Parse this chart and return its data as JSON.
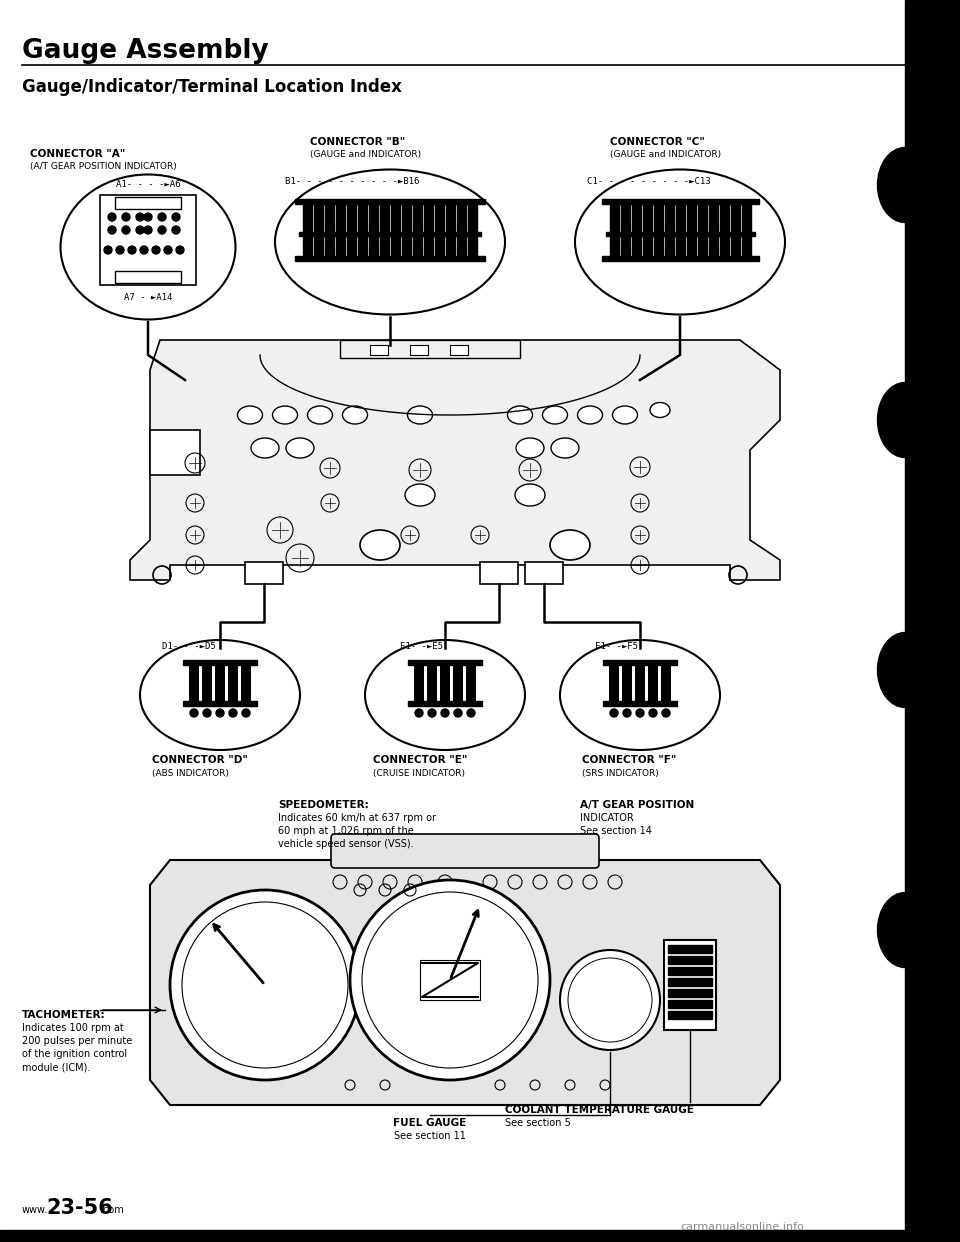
{
  "title": "Gauge Assembly",
  "subtitle": "Gauge/Indicator/Terminal Location Index",
  "bg_color": "#ffffff",
  "text_color": "#000000",
  "conn_a_title": "CONNECTOR \"A\"",
  "conn_a_sub": "(A/T GEAR POSITION INDICATOR)",
  "conn_b_title": "CONNECTOR \"B\"",
  "conn_b_sub": "(GAUGE and INDICATOR)",
  "conn_c_title": "CONNECTOR \"C\"",
  "conn_c_sub": "(GAUGE and INDICATOR)",
  "conn_d_title": "CONNECTOR \"D\"",
  "conn_d_sub": "(ABS INDICATOR)",
  "conn_e_title": "CONNECTOR \"E\"",
  "conn_e_sub": "(CRUISE INDICATOR)",
  "conn_f_title": "CONNECTOR \"F\"",
  "conn_f_sub": "(SRS INDICATOR)",
  "speedometer_bold": "SPEEDOMETER:",
  "speedometer_rest": "Indicates 60 km/h at 637 rpm or\n60 mph at 1,026 rpm of the\nvehicle speed sensor (VSS).",
  "at_gear_bold": "A/T GEAR POSITION",
  "at_gear_rest": "INDICATOR\nSee section 14",
  "tachometer_bold": "TACHOMETER:",
  "tachometer_rest": "Indicates 100 rpm at\n200 pulses per minute\nof the ignition control\nmodule (ICM).",
  "fuel_bold": "FUEL GAUGE",
  "fuel_rest": "See section 11",
  "coolant_bold": "COOLANT TEMPERATURE GAUGE",
  "coolant_rest": "See section 5",
  "page_num": "23-56",
  "footer_left": "www.",
  "footer_right": ".com",
  "watermark": "carmanualsonline.info"
}
